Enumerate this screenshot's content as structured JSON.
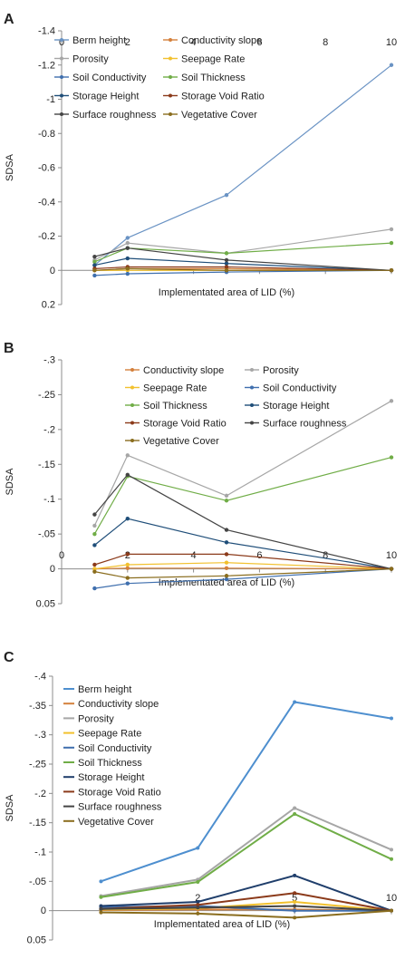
{
  "chart_data": [
    {
      "panel": "A",
      "type": "line",
      "title": "",
      "xlabel": "Implementated area of LID (%)",
      "ylabel": "SDSA",
      "reversed_y": true,
      "xlim": [
        0,
        10
      ],
      "ylim": [
        0.2,
        -1.4
      ],
      "xticks": [
        0,
        2,
        4,
        6,
        8,
        10
      ],
      "yticks": [
        -1.4,
        -1.2,
        -1,
        -0.8,
        -0.6,
        -0.4,
        -0.2,
        0,
        0.2
      ],
      "ytick_labels": [
        "-1.4",
        "-1.2",
        "-1",
        "-0.8",
        "-0.6",
        "-0.4",
        "-0.2",
        "0",
        "0.2"
      ],
      "x": [
        1,
        2,
        5,
        10
      ],
      "legend_columns": 2,
      "series": [
        {
          "name": "Berm height",
          "color": "#6a93c4",
          "values": [
            -0.03,
            -0.19,
            -0.44,
            -1.2
          ]
        },
        {
          "name": "Conductivity slope",
          "color": "#d4803c",
          "values": [
            0.0,
            -0.01,
            -0.01,
            0.0
          ]
        },
        {
          "name": "Porosity",
          "color": "#a6a6a6",
          "values": [
            -0.06,
            -0.16,
            -0.1,
            -0.24
          ]
        },
        {
          "name": "Seepage Rate",
          "color": "#f2c12e",
          "values": [
            0.0,
            0.0,
            0.0,
            0.0
          ]
        },
        {
          "name": "Soil Conductivity",
          "color": "#3f6fae",
          "values": [
            0.03,
            0.02,
            0.01,
            0.0
          ]
        },
        {
          "name": "Soil Thickness",
          "color": "#70ad47",
          "values": [
            -0.05,
            -0.13,
            -0.1,
            -0.16
          ]
        },
        {
          "name": "Storage Height",
          "color": "#1f4e79",
          "values": [
            -0.03,
            -0.07,
            -0.04,
            0.0
          ]
        },
        {
          "name": "Storage Void Ratio",
          "color": "#8b3a1a",
          "values": [
            -0.01,
            -0.02,
            -0.02,
            0.0
          ]
        },
        {
          "name": "Surface roughness",
          "color": "#444444",
          "values": [
            -0.08,
            -0.13,
            -0.06,
            0.0
          ]
        },
        {
          "name": "Vegetative Cover",
          "color": "#8a6d1e",
          "values": [
            0.0,
            -0.01,
            0.0,
            0.0
          ]
        }
      ]
    },
    {
      "panel": "B",
      "type": "line",
      "title": "",
      "xlabel": "Implementated area of LID (%)",
      "ylabel": "SDSA",
      "reversed_y": true,
      "xlim": [
        0,
        10
      ],
      "ylim": [
        0.05,
        -0.3
      ],
      "xticks": [
        0,
        2,
        4,
        6,
        8,
        10
      ],
      "yticks": [
        -0.3,
        -0.25,
        -0.2,
        -0.15,
        -0.1,
        -0.05,
        0,
        0.05
      ],
      "ytick_labels": [
        "-.3",
        "-.25",
        "-.2",
        "-.15",
        "-.1",
        "-.05",
        "0",
        "0.05"
      ],
      "x": [
        1,
        2,
        5,
        10
      ],
      "legend_columns": 2,
      "series": [
        {
          "name": "Conductivity slope",
          "color": "#d4803c",
          "values": [
            0.0,
            -0.001,
            -0.001,
            0.0
          ]
        },
        {
          "name": "Porosity",
          "color": "#a6a6a6",
          "values": [
            -0.062,
            -0.163,
            -0.105,
            -0.241
          ]
        },
        {
          "name": "Seepage Rate",
          "color": "#f2c12e",
          "values": [
            0.0,
            -0.006,
            -0.009,
            0.0
          ]
        },
        {
          "name": "Soil Conductivity",
          "color": "#3f6fae",
          "values": [
            0.028,
            0.021,
            0.015,
            0.0
          ]
        },
        {
          "name": "Soil Thickness",
          "color": "#70ad47",
          "values": [
            -0.05,
            -0.133,
            -0.098,
            -0.16
          ]
        },
        {
          "name": "Storage Height",
          "color": "#1f4e79",
          "values": [
            -0.034,
            -0.072,
            -0.038,
            0.0
          ]
        },
        {
          "name": "Storage Void Ratio",
          "color": "#8b3a1a",
          "values": [
            -0.006,
            -0.021,
            -0.021,
            0.0
          ]
        },
        {
          "name": "Surface roughness",
          "color": "#444444",
          "values": [
            -0.078,
            -0.135,
            -0.056,
            0.0
          ]
        },
        {
          "name": "Vegetative Cover",
          "color": "#8a6d1e",
          "values": [
            0.004,
            0.013,
            0.01,
            0.0
          ]
        }
      ]
    },
    {
      "panel": "C",
      "type": "line",
      "title": "",
      "xlabel": "Implementated area of LID (%)",
      "ylabel": "SDSA",
      "reversed_y": true,
      "ylim": [
        0.05,
        -0.4
      ],
      "x_categories": [
        "1",
        "2",
        "5",
        "10"
      ],
      "x_labels_shown": [
        "",
        "2",
        "5",
        "10"
      ],
      "yticks": [
        -0.4,
        -0.35,
        -0.3,
        -0.25,
        -0.2,
        -0.15,
        -0.1,
        -0.05,
        0,
        0.05
      ],
      "ytick_labels": [
        "-.4",
        "-.35",
        "-.3",
        "-.25",
        "-.2",
        "-.15",
        "-.1",
        "-.05",
        "0",
        "0.05"
      ],
      "legend_columns": 1,
      "series": [
        {
          "name": "Berm height",
          "color": "#4e8fcf",
          "values": [
            -0.05,
            -0.107,
            -0.356,
            -0.328
          ]
        },
        {
          "name": "Conductivity slope",
          "color": "#d4803c",
          "values": [
            -0.001,
            -0.002,
            -0.002,
            0.0
          ]
        },
        {
          "name": "Porosity",
          "color": "#a6a6a6",
          "values": [
            -0.025,
            -0.053,
            -0.175,
            -0.104
          ]
        },
        {
          "name": "Seepage Rate",
          "color": "#f2c12e",
          "values": [
            -0.002,
            -0.004,
            -0.015,
            0.0
          ]
        },
        {
          "name": "Soil Conductivity",
          "color": "#3f6fae",
          "values": [
            -0.006,
            -0.008,
            0.0,
            0.0
          ]
        },
        {
          "name": "Soil Thickness",
          "color": "#70ad47",
          "values": [
            -0.023,
            -0.049,
            -0.165,
            -0.088
          ]
        },
        {
          "name": "Storage Height",
          "color": "#1f3e6b",
          "values": [
            -0.008,
            -0.015,
            -0.06,
            0.0
          ]
        },
        {
          "name": "Storage Void Ratio",
          "color": "#8b3a1a",
          "values": [
            -0.003,
            -0.01,
            -0.03,
            0.0
          ]
        },
        {
          "name": "Surface roughness",
          "color": "#444444",
          "values": [
            -0.003,
            -0.005,
            -0.008,
            0.0
          ]
        },
        {
          "name": "Vegetative Cover",
          "color": "#8a6d1e",
          "values": [
            0.003,
            0.005,
            0.012,
            0.0
          ]
        }
      ]
    }
  ]
}
